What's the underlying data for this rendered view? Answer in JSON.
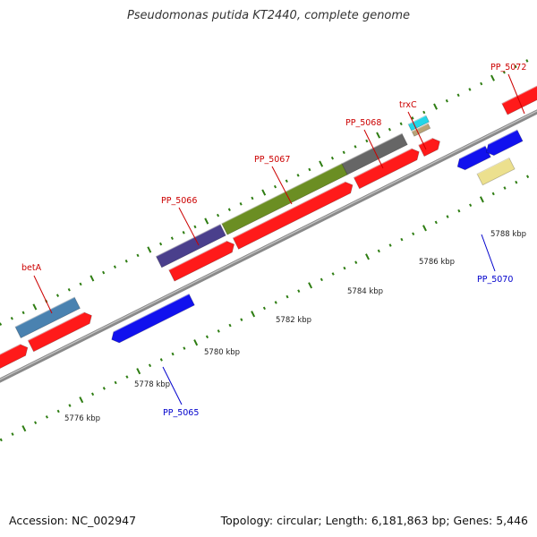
{
  "title": "Pseudomonas putida KT2440, complete genome",
  "footer": {
    "accession": "Accession: NC_002947",
    "summary": "Topology: circular; Length: 6,181,863 bp; Genes: 5,446"
  },
  "colors": {
    "background": "#ffffff",
    "backbone": "#8a8a8a",
    "tick": "#2e7d12",
    "label_forward": "#cc0000",
    "label_reverse": "#0000cc"
  },
  "scale_labels": [
    "5776 kbp",
    "5778 kbp",
    "5780 kbp",
    "5782 kbp",
    "5784 kbp",
    "5786 kbp",
    "5788 kbp"
  ],
  "gene_labels": [
    {
      "name": "betA",
      "color": "#cc0000"
    },
    {
      "name": "PP_5065",
      "color": "#0000cc"
    },
    {
      "name": "PP_5066",
      "color": "#cc0000"
    },
    {
      "name": "PP_5067",
      "color": "#cc0000"
    },
    {
      "name": "PP_5068",
      "color": "#cc0000"
    },
    {
      "name": "trxC",
      "color": "#cc0000"
    },
    {
      "name": "PP_5070",
      "color": "#0000cc"
    },
    {
      "name": "PP_5072",
      "color": "#cc0000"
    }
  ],
  "features": [
    {
      "name": "forward-gene",
      "color": "#ff1a1a",
      "strand": "+"
    },
    {
      "name": "forward-gene",
      "color": "#ff1a1a",
      "strand": "+"
    },
    {
      "name": "forward-gene",
      "color": "#ff1a1a",
      "strand": "+"
    },
    {
      "name": "forward-gene",
      "color": "#ff1a1a",
      "strand": "+"
    },
    {
      "name": "forward-gene",
      "color": "#ff1a1a",
      "strand": "+"
    },
    {
      "name": "forward-gene",
      "color": "#ff1a1a",
      "strand": "+"
    },
    {
      "name": "forward-gene",
      "color": "#ff1a1a",
      "strand": "+"
    },
    {
      "name": "reverse-gene",
      "color": "#1111ee",
      "strand": "-"
    },
    {
      "name": "reverse-gene",
      "color": "#1111ee",
      "strand": "-"
    },
    {
      "name": "reverse-gene",
      "color": "#1111ee",
      "strand": "-"
    },
    {
      "name": "domain-feature",
      "color": "#4a82b0",
      "strand": "+"
    },
    {
      "name": "domain-feature",
      "color": "#4a3f8c",
      "strand": "+"
    },
    {
      "name": "domain-feature",
      "color": "#6b8e23",
      "strand": "+"
    },
    {
      "name": "domain-feature",
      "color": "#666666",
      "strand": "+"
    },
    {
      "name": "domain-feature",
      "color": "#22d6e8",
      "strand": "+"
    },
    {
      "name": "domain-feature",
      "color": "#b8a478",
      "strand": "+"
    },
    {
      "name": "domain-feature",
      "color": "#ece08e",
      "strand": "-"
    }
  ]
}
